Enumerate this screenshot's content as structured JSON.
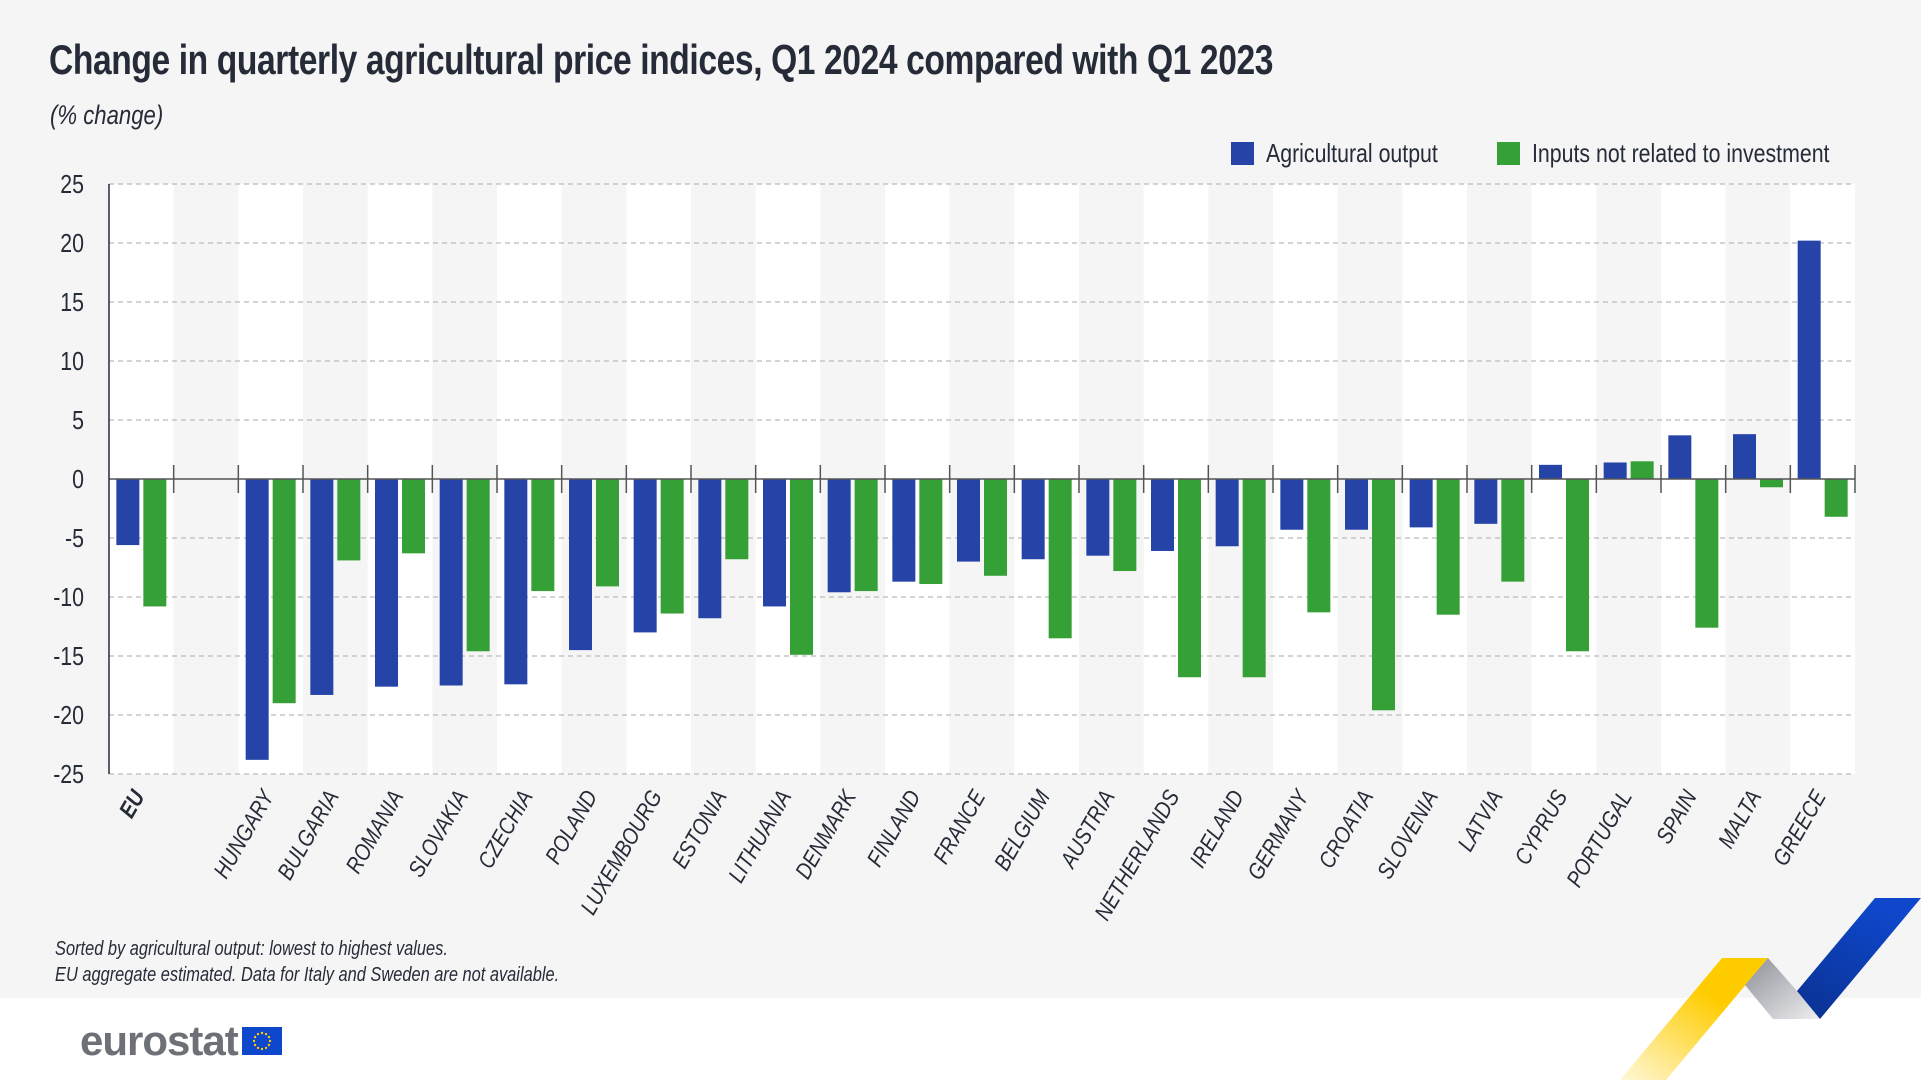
{
  "colors": {
    "agricultural_output": "#2643a8",
    "inputs": "#34a035",
    "panel": "#f5f5f5",
    "stripe": "#ffffff",
    "text": "#262b38"
  },
  "chart_data": {
    "type": "bar",
    "title": "Change in quarterly agricultural price indices, Q1 2024 compared with Q1 2023",
    "subtitle": "(% change)",
    "categories": [
      "EU",
      "",
      "HUNGARY",
      "BULGARIA",
      "ROMANIA",
      "SLOVAKIA",
      "CZECHIA",
      "POLAND",
      "LUXEMBOURG",
      "ESTONIA",
      "LITHUANIA",
      "DENMARK",
      "FINLAND",
      "FRANCE",
      "BELGIUM",
      "AUSTRIA",
      "NETHERLANDS",
      "IRELAND",
      "GERMANY",
      "CROATIA",
      "SLOVENIA",
      "LATVIA",
      "CYPRUS",
      "PORTUGAL",
      "SPAIN",
      "MALTA",
      "GREECE"
    ],
    "series": [
      {
        "name": "Agricultural output",
        "values": [
          -5.6,
          null,
          -23.8,
          -18.3,
          -17.6,
          -17.5,
          -17.4,
          -14.5,
          -13.0,
          -11.8,
          -10.8,
          -9.6,
          -8.7,
          -7.0,
          -6.8,
          -6.5,
          -6.1,
          -5.7,
          -4.3,
          -4.3,
          -4.1,
          -3.8,
          1.2,
          1.4,
          3.7,
          3.8,
          20.2
        ]
      },
      {
        "name": "Inputs not related to investment",
        "values": [
          -10.8,
          null,
          -19.0,
          -6.9,
          -6.3,
          -14.6,
          -9.5,
          -9.1,
          -11.4,
          -6.8,
          -14.9,
          -9.5,
          -8.9,
          -8.2,
          -13.5,
          -7.8,
          -16.8,
          -16.8,
          -11.3,
          -19.6,
          -11.5,
          -8.7,
          -14.6,
          1.5,
          -12.6,
          -0.7,
          -3.2
        ]
      }
    ],
    "ylim": [
      -25,
      25
    ],
    "yticks": [
      25,
      20,
      15,
      10,
      5,
      0,
      -5,
      -10,
      -15,
      -20,
      -25
    ],
    "grid": true,
    "legend_position": "top-right",
    "notes": [
      "Sorted by agricultural output: lowest to highest values.",
      "EU aggregate estimated. Data for Italy and Sweden are not available."
    ]
  },
  "logo": {
    "text": "eurostat"
  }
}
